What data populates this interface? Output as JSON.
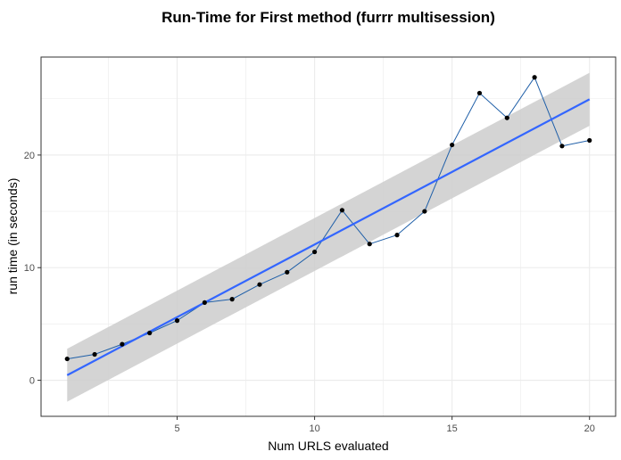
{
  "chart_data": {
    "type": "line",
    "title": "Run-Time for First method (furrr multisession)",
    "xlabel": "Num URLS evaluated",
    "ylabel": "run time (in seconds)",
    "xlim": [
      0.05,
      20.95
    ],
    "ylim": [
      -3.2,
      28.7
    ],
    "x_ticks": [
      5,
      10,
      15,
      20
    ],
    "y_ticks": [
      0,
      10,
      20
    ],
    "grid": true,
    "legend": "none",
    "series": [
      {
        "kind": "observed",
        "x": [
          1,
          2,
          3,
          4,
          5,
          6,
          7,
          8,
          9,
          10,
          11,
          12,
          13,
          14,
          15,
          16,
          17,
          18,
          19,
          20
        ],
        "y": [
          1.9,
          2.3,
          3.2,
          4.2,
          5.3,
          6.9,
          7.2,
          8.5,
          9.6,
          11.4,
          15.1,
          12.1,
          12.9,
          15.0,
          20.9,
          25.5,
          23.3,
          26.9,
          20.8,
          21.3
        ],
        "line_color": "#1f5fa8",
        "point_color": "#000000"
      },
      {
        "kind": "linear-fit",
        "x": [
          1,
          20
        ],
        "y": [
          0.45,
          24.95
        ],
        "ci_lower": [
          -1.9,
          22.6
        ],
        "ci_upper": [
          2.8,
          27.3
        ],
        "line_color": "#3366ff",
        "band_color": "#cccccc"
      }
    ],
    "colors": {
      "panel_background": "#ffffff",
      "grid": "#ebebeb",
      "panel_border": "#333333",
      "fit_line": "#3366ff",
      "observed_line": "#1f5fa8",
      "ci_band": "#cccccc"
    }
  }
}
